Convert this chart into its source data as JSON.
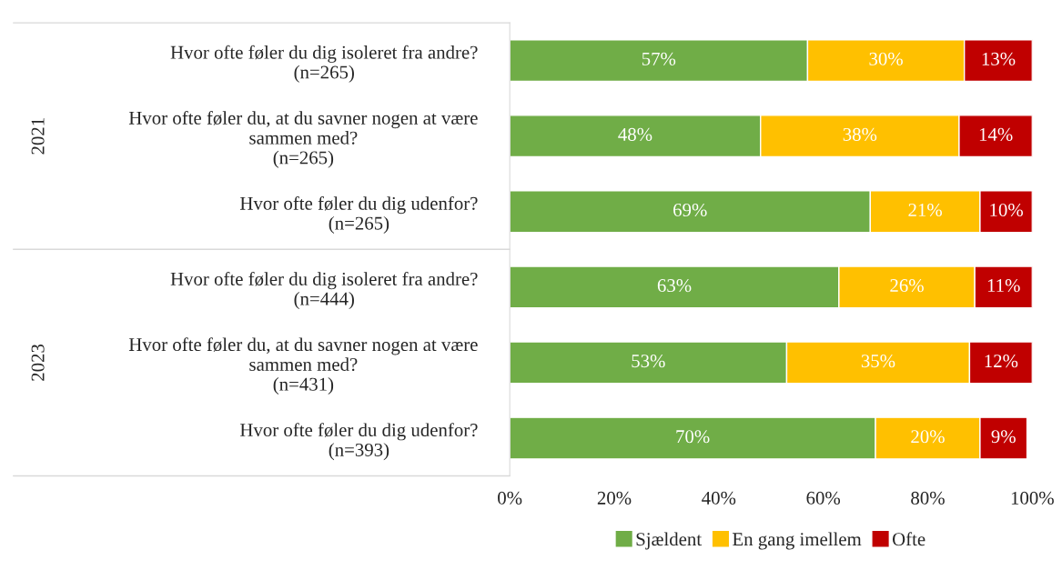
{
  "chart_data": {
    "type": "bar",
    "orientation": "horizontal",
    "stacked": true,
    "categories": [
      "Hvor ofte føler du dig isoleret fra andre?\n(n=265)",
      "Hvor ofte føler du, at du savner nogen at være\nsammen med?\n(n=265)",
      "Hvor ofte føler du dig udenfor?\n(n=265)",
      "Hvor ofte føler du dig isoleret fra andre?\n(n=444)",
      "Hvor ofte føler du, at du savner nogen at være\nsammen med?\n(n=431)",
      "Hvor ofte føler du dig udenfor?\n(n=393)"
    ],
    "series": [
      {
        "name": "Sjældent",
        "color": "#70ad47",
        "values": [
          57,
          48,
          69,
          63,
          53,
          70
        ],
        "value_labels": [
          "57%",
          "48%",
          "69%",
          "63%",
          "53%",
          "70%"
        ]
      },
      {
        "name": "En gang imellem",
        "color": "#ffc000",
        "values": [
          30,
          38,
          21,
          26,
          35,
          20
        ],
        "value_labels": [
          "30%",
          "38%",
          "21%",
          "26%",
          "35%",
          "20%"
        ]
      },
      {
        "name": "Ofte",
        "color": "#c00000",
        "values": [
          13,
          14,
          10,
          11,
          12,
          9
        ],
        "value_labels": [
          "13%",
          "14%",
          "10%",
          "11%",
          "12%",
          "9%"
        ]
      }
    ],
    "xlim": [
      0,
      100
    ],
    "xticks": [
      {
        "value": 0,
        "label": "0%"
      },
      {
        "value": 20,
        "label": "20%"
      },
      {
        "value": 40,
        "label": "40%"
      },
      {
        "value": 60,
        "label": "60%"
      },
      {
        "value": 80,
        "label": "80%"
      },
      {
        "value": 100,
        "label": "100%"
      }
    ],
    "annotations": [
      "2021",
      "2023"
    ],
    "grid": false,
    "legend": "bottom"
  }
}
